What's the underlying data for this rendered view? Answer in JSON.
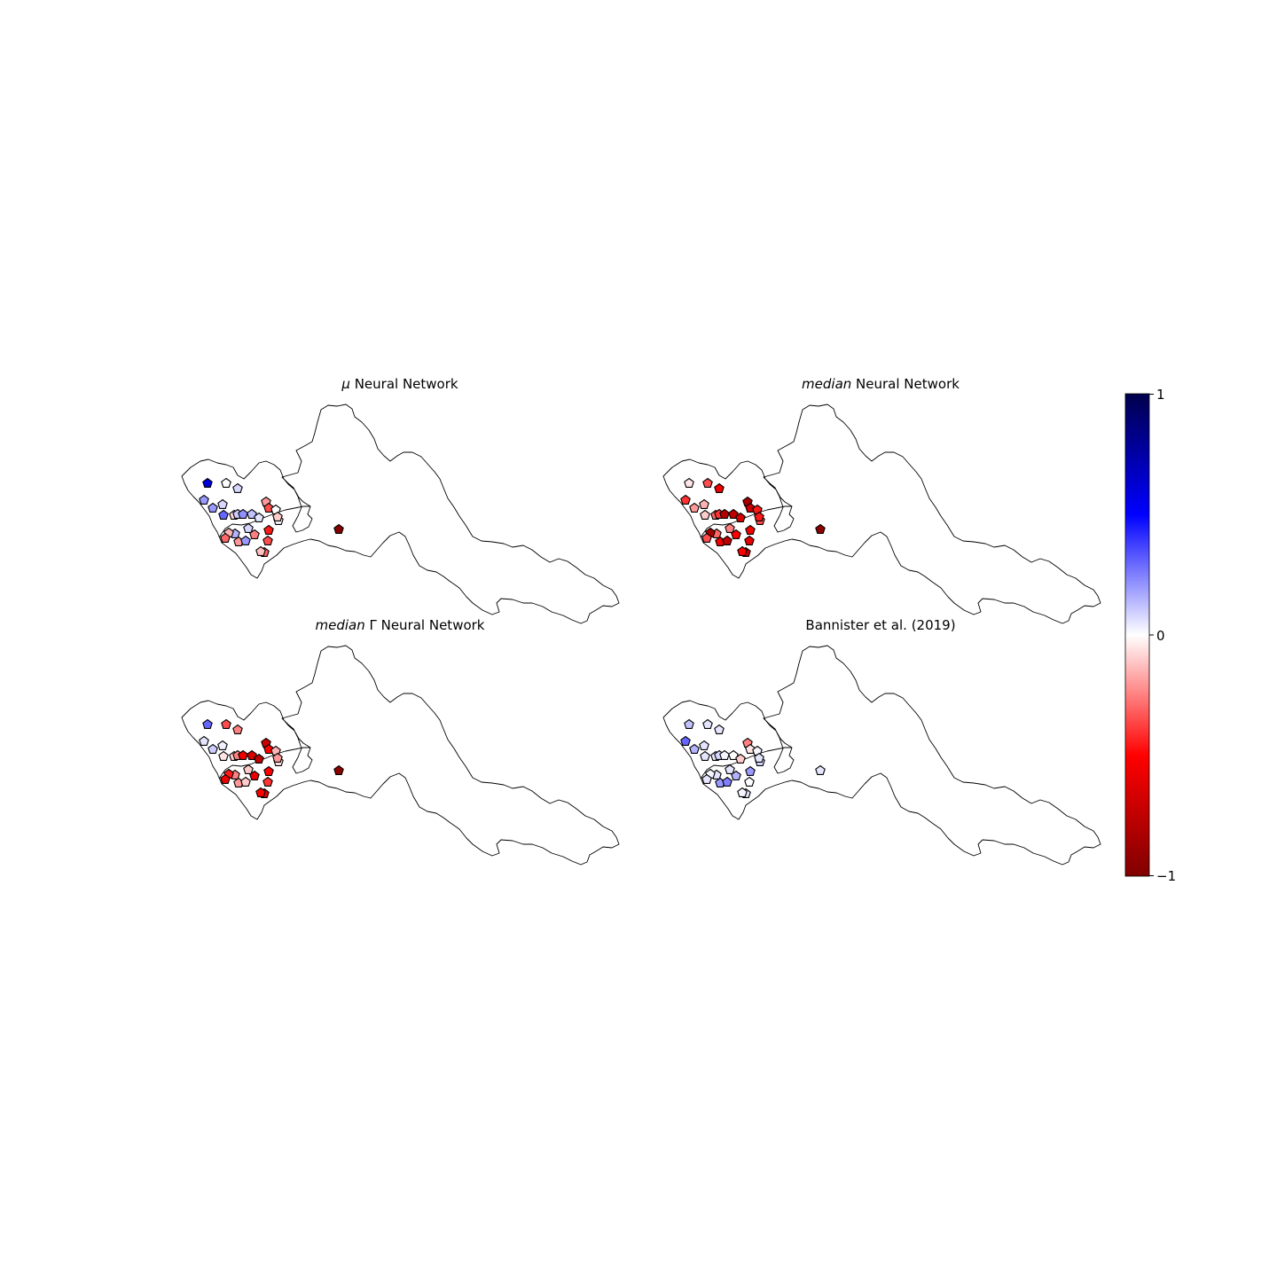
{
  "panels": [
    {
      "id": "mu",
      "title_italic": "μ",
      "title_rest": " Neural Network",
      "values": [
        0.6,
        0.0,
        0.08,
        0.2,
        0.2,
        0.08,
        0.3,
        -0.08,
        0.1,
        0.22,
        0.12,
        0.05,
        -0.2,
        -0.35,
        0.0,
        0.02,
        -0.1,
        0.08,
        0.15,
        -0.15,
        -0.3,
        -0.2,
        0.2,
        -0.25,
        -0.45,
        -0.35,
        -0.3,
        -0.12,
        -0.98
      ]
    },
    {
      "id": "median",
      "title_italic": "median",
      "title_rest": " Neural Network",
      "values": [
        -0.05,
        -0.35,
        -0.55,
        -0.4,
        -0.2,
        -0.15,
        -0.1,
        -0.3,
        -0.4,
        -0.8,
        -0.75,
        -0.65,
        -0.85,
        -0.7,
        -0.45,
        -0.35,
        -0.45,
        -0.25,
        -0.3,
        -0.85,
        -0.35,
        -0.55,
        -0.75,
        -0.5,
        -0.55,
        -0.6,
        -0.7,
        -0.5,
        -0.95
      ]
    },
    {
      "id": "median_gamma",
      "title_italic": "median",
      "title_rest": " Γ Neural Network",
      "values": [
        0.3,
        -0.35,
        -0.25,
        0.05,
        0.1,
        0.03,
        -0.05,
        -0.1,
        -0.25,
        -0.55,
        -0.65,
        -0.75,
        -0.7,
        -0.5,
        -0.15,
        -0.05,
        -0.2,
        -0.1,
        -0.25,
        -0.45,
        -0.55,
        -0.2,
        -0.1,
        -0.6,
        -0.5,
        -0.4,
        -0.6,
        -0.5,
        -0.95
      ]
    },
    {
      "id": "bannister",
      "title_italic": "",
      "title_rest": "Bannister et al. (2019)",
      "values": [
        0.12,
        0.05,
        0.05,
        0.3,
        0.15,
        0.05,
        0.05,
        0.05,
        0.08,
        0.02,
        0.0,
        -0.1,
        -0.25,
        -0.05,
        0.02,
        0.08,
        0.05,
        0.05,
        0.05,
        0.02,
        0.05,
        0.2,
        0.25,
        0.15,
        0.2,
        0.0,
        0.05,
        0.02,
        0.05
      ]
    }
  ],
  "colorbar": {
    "colormap": "seismic_r",
    "max_label": "1",
    "mid_label": "0",
    "min_label": "−1",
    "vmin": -1,
    "vmax": 1,
    "colors": [
      "#00004c",
      "#0000ff",
      "#ffffff",
      "#ff0000",
      "#800000"
    ]
  }
}
